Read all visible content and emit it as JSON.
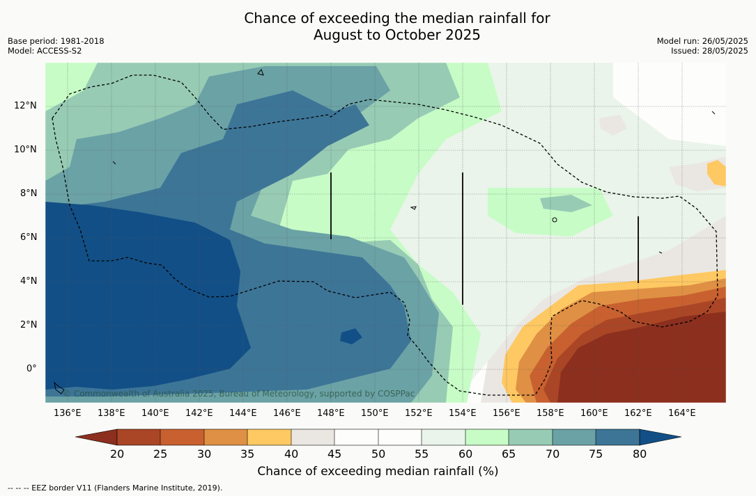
{
  "title": {
    "line1": "Chance of exceeding the median rainfall for",
    "line2": "August to October 2025"
  },
  "meta_left": {
    "base_period": "Base period: 1981-2018",
    "model": "Model: ACCESS-S2"
  },
  "meta_right": {
    "model_run": "Model run: 26/05/2025",
    "issued": "Issued: 28/05/2025"
  },
  "map": {
    "lat_labels": [
      "12°N",
      "10°N",
      "8°N",
      "6°N",
      "4°N",
      "2°N",
      "0°"
    ],
    "lon_labels": [
      "136°E",
      "138°E",
      "140°E",
      "142°E",
      "144°E",
      "146°E",
      "148°E",
      "150°E",
      "152°E",
      "154°E",
      "156°E",
      "158°E",
      "160°E",
      "162°E",
      "164°E"
    ],
    "copyright": "© Commonwealth of Australia 2025, Bureau of Meteorology, supported by COSPPac",
    "layers": [
      "rainfall-probability-shading",
      "eez-border",
      "coastline",
      "graticule"
    ]
  },
  "colorbar": {
    "ticks": [
      "20",
      "25",
      "30",
      "35",
      "40",
      "45",
      "50",
      "55",
      "60",
      "65",
      "70",
      "75",
      "80"
    ],
    "colors": [
      "#8c2f1e",
      "#aa4626",
      "#c8612f",
      "#df9044",
      "#fec862",
      "#eae7e2",
      "#fdfdfc",
      "#fdfdfc",
      "#eaf4ea",
      "#c7fcc6",
      "#97cbb4",
      "#6ba2a6",
      "#3d7597",
      "#124f86"
    ],
    "title": "Chance of exceeding median rainfall (%)"
  },
  "footer": "--  --  -- EEZ border V11 (Flanders Marine Institute, 2019)."
}
